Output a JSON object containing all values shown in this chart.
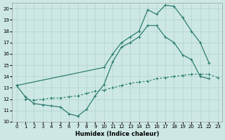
{
  "bg_color": "#cde8e4",
  "grid_color": "#b0d0cc",
  "line_color": "#2d7d72",
  "xlabel": "Humidex (Indice chaleur)",
  "xlim": [
    -0.5,
    23.5
  ],
  "ylim": [
    10,
    20.5
  ],
  "yticks": [
    10,
    11,
    12,
    13,
    14,
    15,
    16,
    17,
    18,
    19,
    20
  ],
  "xticks": [
    0,
    1,
    2,
    3,
    4,
    5,
    6,
    7,
    8,
    9,
    10,
    11,
    12,
    13,
    14,
    15,
    16,
    17,
    18,
    19,
    20,
    21,
    22,
    23
  ],
  "c1_x": [
    0,
    1,
    2,
    3,
    4,
    5,
    6,
    7,
    8,
    9,
    10,
    11,
    12,
    13,
    14,
    15,
    16,
    17,
    18,
    19,
    20,
    21,
    22
  ],
  "c1_y": [
    13.2,
    12.2,
    11.6,
    11.5,
    11.4,
    11.3,
    10.7,
    10.5,
    11.1,
    12.3,
    13.3,
    15.3,
    16.6,
    17.0,
    17.5,
    18.5,
    18.5,
    17.5,
    17.0,
    15.9,
    15.5,
    14.0,
    13.8
  ],
  "c2_x": [
    0,
    10,
    11,
    12,
    13,
    14,
    15,
    16,
    17,
    18,
    19,
    20,
    21,
    22
  ],
  "c2_y": [
    13.2,
    14.8,
    16.0,
    17.0,
    17.5,
    18.0,
    19.9,
    19.5,
    20.3,
    20.2,
    19.2,
    18.0,
    17.0,
    15.2
  ],
  "c3_x": [
    1,
    2,
    3,
    4,
    5,
    6,
    7,
    8,
    9,
    10,
    11,
    12,
    13,
    14,
    15,
    16,
    17,
    18,
    19,
    20,
    21,
    22,
    23
  ],
  "c3_y": [
    12.0,
    11.9,
    12.0,
    12.1,
    12.1,
    12.2,
    12.3,
    12.5,
    12.7,
    12.8,
    13.0,
    13.2,
    13.4,
    13.5,
    13.6,
    13.8,
    13.9,
    14.0,
    14.1,
    14.2,
    14.2,
    14.2,
    13.9
  ]
}
